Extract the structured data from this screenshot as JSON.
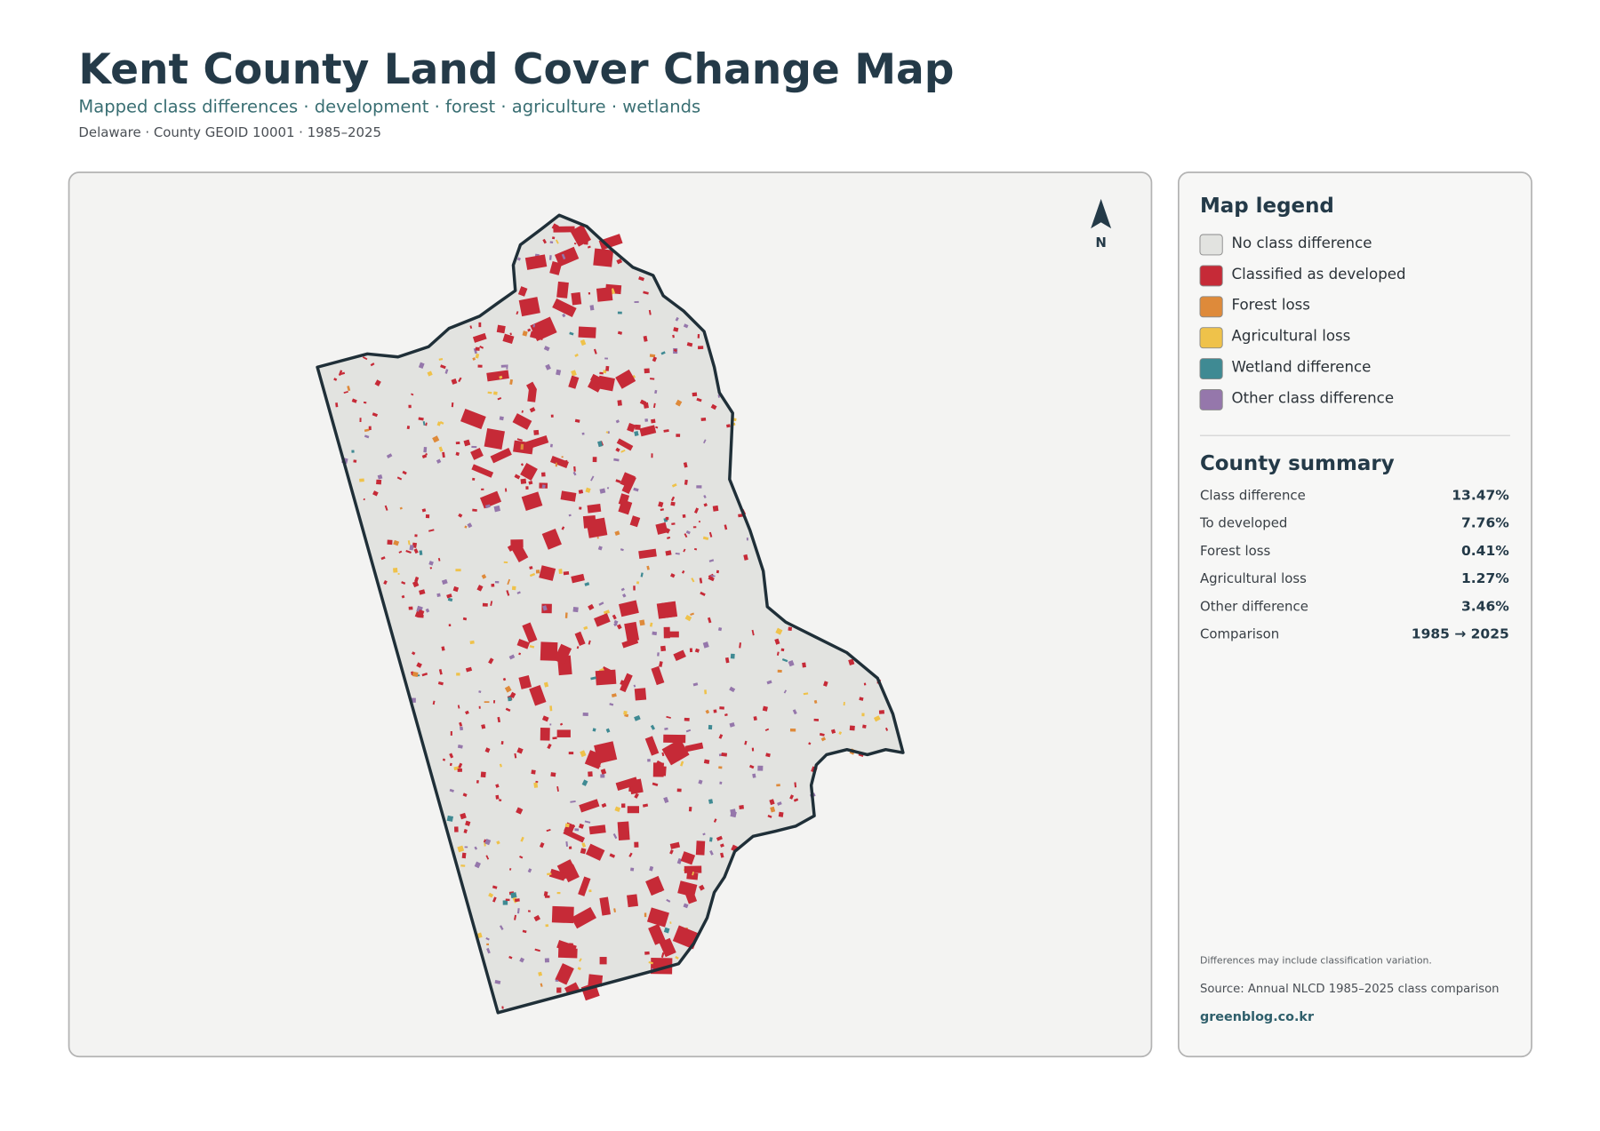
{
  "header": {
    "title": "Kent County Land Cover Change Map",
    "subtitle": "Mapped class differences · development · forest · agriculture · wetlands",
    "meta": "Delaware · County GEOID 10001 · 1985–2025"
  },
  "map": {
    "north_label": "N"
  },
  "legend": {
    "title": "Map legend",
    "items": [
      {
        "label": "No class difference",
        "color": "#e2e3e0"
      },
      {
        "label": "Classified as developed",
        "color": "#c62a37"
      },
      {
        "label": "Forest loss",
        "color": "#de8a3a"
      },
      {
        "label": "Agricultural loss",
        "color": "#efc24a"
      },
      {
        "label": "Wetland difference",
        "color": "#3f8a93"
      },
      {
        "label": "Other class difference",
        "color": "#9577ab"
      }
    ]
  },
  "summary": {
    "title": "County summary",
    "rows": [
      {
        "label": "Class difference",
        "value": "13.47%"
      },
      {
        "label": "To developed",
        "value": "7.76%"
      },
      {
        "label": "Forest loss",
        "value": "0.41%"
      },
      {
        "label": "Agricultural loss",
        "value": "1.27%"
      },
      {
        "label": "Other difference",
        "value": "3.46%"
      },
      {
        "label": "Comparison",
        "value": "1985 → 2025"
      }
    ]
  },
  "footer": {
    "note": "Differences may include classification variation.",
    "source": "Source: Annual NLCD 1985–2025 class comparison",
    "credit": "greenblog.co.kr"
  }
}
